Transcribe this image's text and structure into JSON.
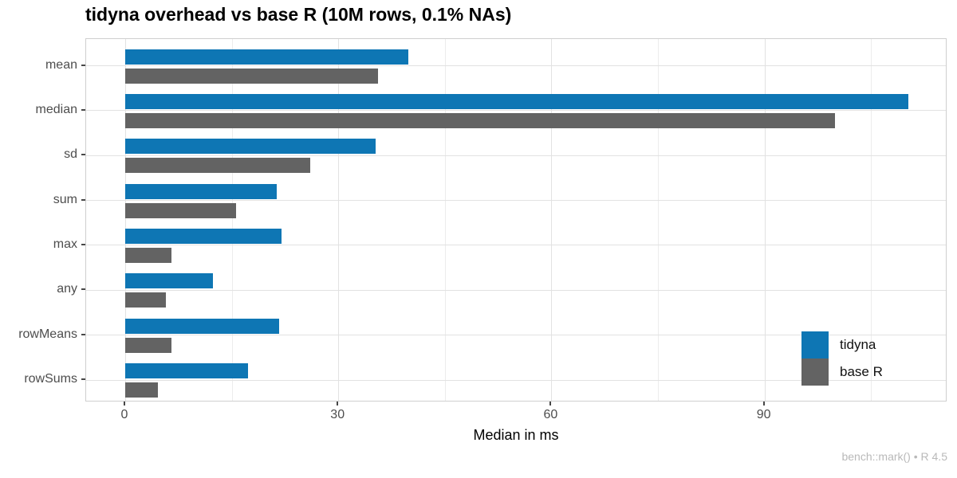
{
  "title": "tidyna overhead vs base R (10M rows, 0.1% NAs)",
  "caption": "bench::mark() • R 4.5",
  "chart_data": {
    "type": "bar",
    "orientation": "horizontal",
    "title": "tidyna overhead vs base R (10M rows, 0.1% NAs)",
    "xlabel": "Median in ms",
    "ylabel": "",
    "categories": [
      "mean",
      "median",
      "sd",
      "sum",
      "max",
      "any",
      "rowMeans",
      "rowSums"
    ],
    "series": [
      {
        "name": "tidyna",
        "color": "#0e76b4",
        "values": [
          39.9,
          110.3,
          35.2,
          21.3,
          22.0,
          12.4,
          21.7,
          17.3
        ]
      },
      {
        "name": "base R",
        "color": "#636363",
        "values": [
          35.6,
          99.9,
          26.0,
          15.6,
          6.5,
          5.7,
          6.5,
          4.6
        ]
      }
    ],
    "x_ticks": [
      0,
      30,
      60,
      90
    ],
    "x_minor_ticks": [
      15,
      45,
      75,
      105
    ],
    "x_panel_range": [
      -5.5,
      115.75
    ],
    "grid": true,
    "legend_position": "inside-bottom-right",
    "gridline_color": "#e2e2e2",
    "axis_text_color": "#4d4d4d"
  }
}
